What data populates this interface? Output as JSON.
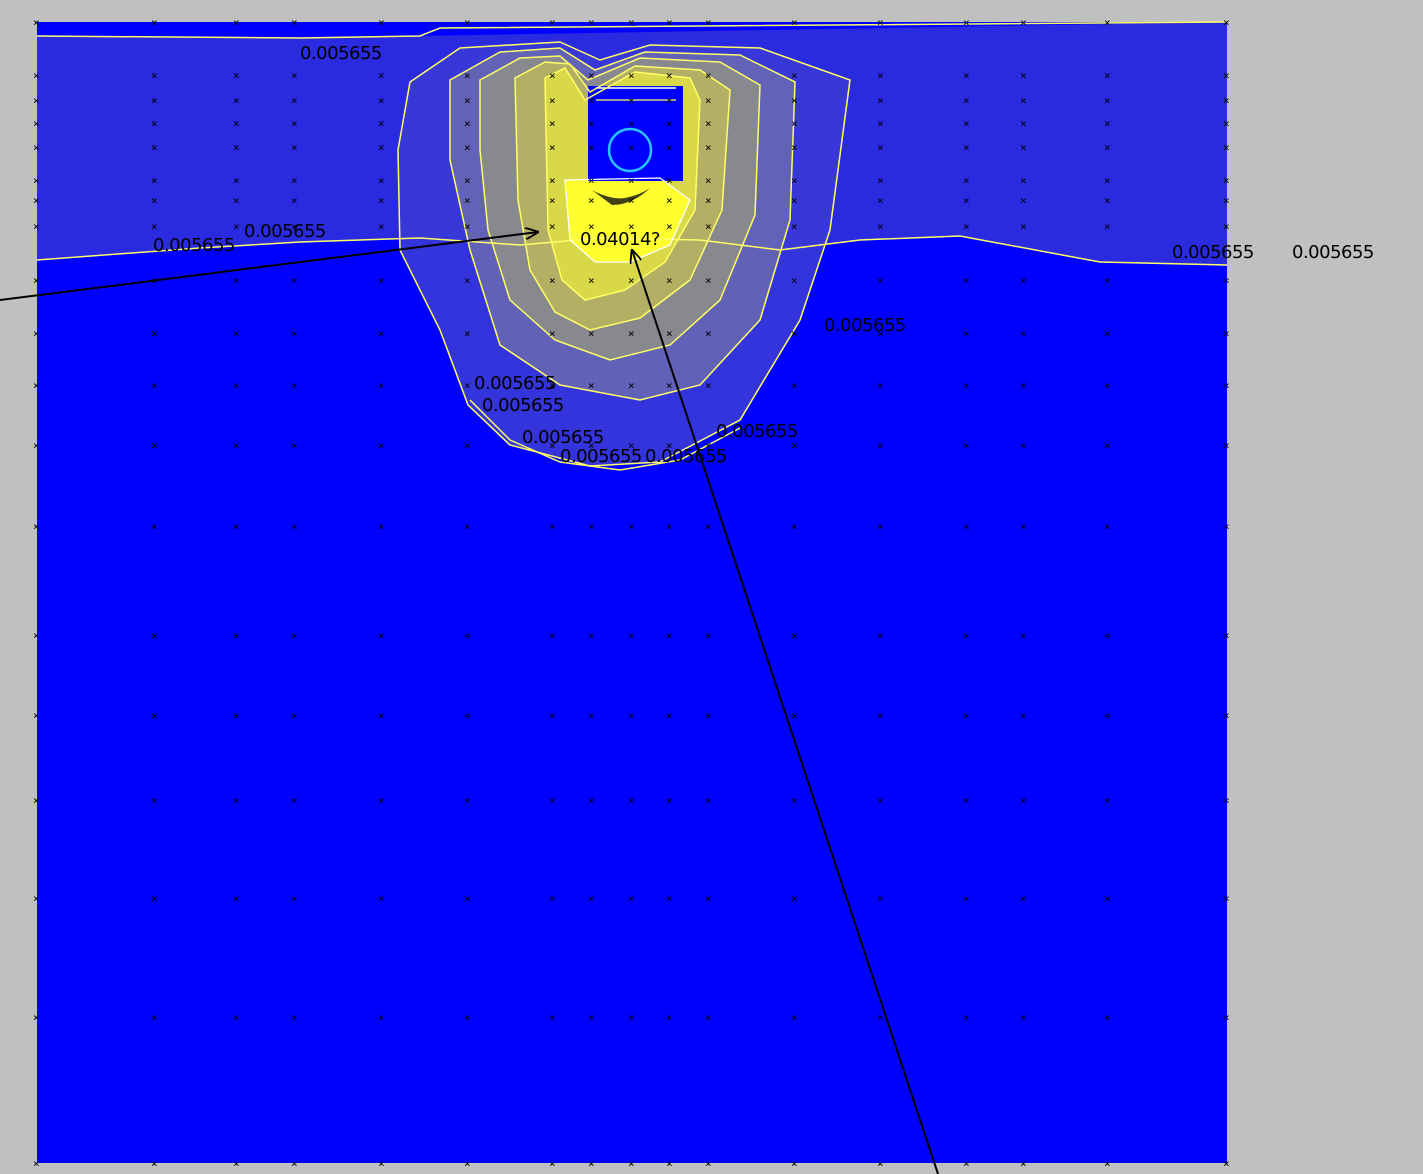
{
  "colors": {
    "background": "#c0c0c0",
    "domain_fill": "#0000ff",
    "band_fill": "#2a2ae0",
    "plume_light": "#a0a070",
    "plume_yellow": "#e8e840",
    "plume_core": "#ffff30",
    "contour_line": "#ffff66",
    "source_marker": "#29c5ff",
    "arrow": "#000000"
  },
  "mesh_marker": "×",
  "contour_labels": [
    {
      "id": "label-top",
      "text": "0.005655"
    },
    {
      "id": "label-left-a",
      "text": "0.005655"
    },
    {
      "id": "label-left-b",
      "text": "0.005655"
    },
    {
      "id": "label-center",
      "text": "0.04014?"
    },
    {
      "id": "label-right-a",
      "text": "0.005655"
    },
    {
      "id": "label-right-b",
      "text": "0.005655"
    },
    {
      "id": "label-mid-right",
      "text": "0.005655"
    },
    {
      "id": "label-lower-a",
      "text": "0.005655"
    },
    {
      "id": "label-lower-b",
      "text": "0.005655"
    },
    {
      "id": "label-bottom-a",
      "text": "0.005655"
    },
    {
      "id": "label-bottom-b",
      "text": "0.005655"
    },
    {
      "id": "label-bottom-c",
      "text": "0.005655"
    },
    {
      "id": "label-bottom-d",
      "text": "0.005655"
    }
  ]
}
